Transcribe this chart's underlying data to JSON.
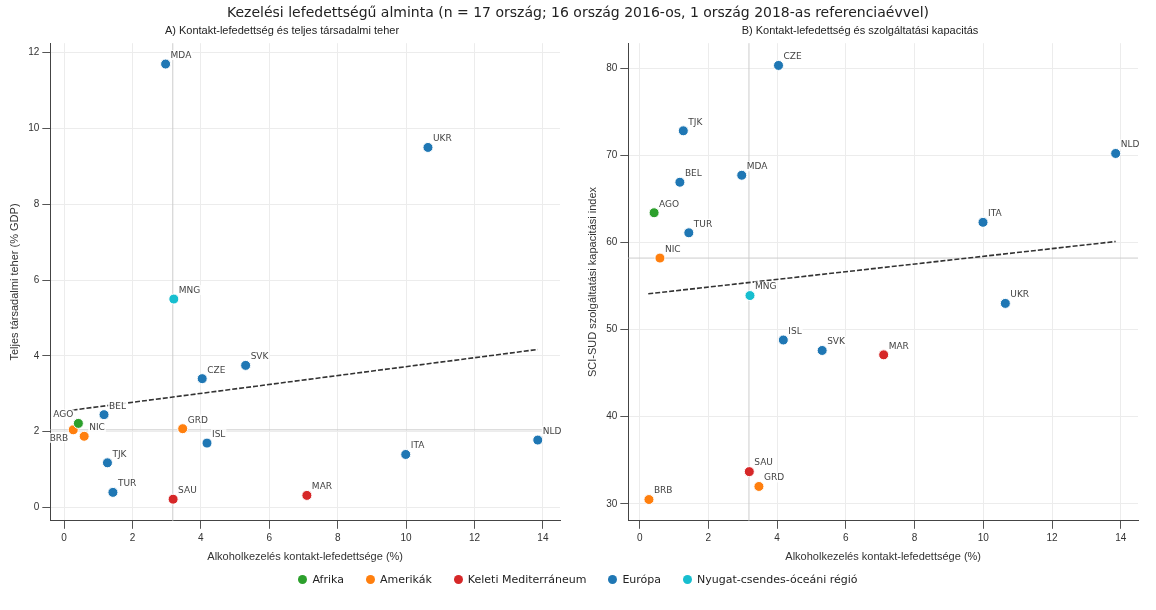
{
  "chart_data": [
    {
      "type": "scatter",
      "title": "Kezelési lefedettségű alminta (n = 17 ország; 16 ország 2016-os, 1 ország 2018-as referenciaévvel)",
      "subtitle": "A) Kontakt-lefedettség és teljes társadalmi teher",
      "xlabel": "Alkoholkezelés kontakt-lefedettsége (%)",
      "ylabel": "Teljes társadalmi teher (% GDP)",
      "xlim": [
        -0.4,
        14.5
      ],
      "ylim": [
        -0.35,
        12.25
      ],
      "xticks": [
        0,
        2,
        4,
        6,
        8,
        10,
        12,
        14
      ],
      "yticks": [
        0,
        2,
        4,
        6,
        8,
        10,
        12
      ],
      "grid": true,
      "legend": "bottom",
      "marker": "circle",
      "series": [
        {
          "name": "Afrika",
          "color": "#2ca02c",
          "x": [
            0.42
          ],
          "values": [
            2.22
          ]
        },
        {
          "name": "Amerikák",
          "color": "#ff7f0e",
          "x": [
            0.27,
            0.59,
            3.47
          ],
          "values": [
            2.05,
            1.88,
            2.08
          ]
        },
        {
          "name": "Keleti Mediterráneum",
          "color": "#d62728",
          "x": [
            3.19,
            7.1
          ],
          "values": [
            0.22,
            0.32
          ]
        },
        {
          "name": "Európa",
          "color": "#1f77b4",
          "x": [
            2.97,
            10.64,
            5.31,
            4.04,
            1.17,
            4.18,
            1.27,
            1.43,
            9.99,
            13.85
          ],
          "values": [
            11.7,
            9.5,
            3.75,
            3.4,
            2.45,
            1.7,
            1.18,
            0.4,
            1.4,
            1.78
          ]
        },
        {
          "name": "Nyugat-csendes-óceáni régió",
          "color": "#17becf",
          "x": [
            3.21
          ],
          "values": [
            5.5
          ]
        },
        {
          "type": "line",
          "color": "#333333",
          "line_style": "dashed",
          "marker": "none",
          "x": [
            0.25,
            13.85
          ],
          "values": [
            2.57,
            4.17
          ]
        }
      ],
      "ref_lines": [
        {
          "axis": "x",
          "value": 3.18,
          "color": "#cccccc"
        },
        {
          "axis": "y",
          "value": 2.05,
          "color": "#cccccc"
        }
      ],
      "annotations": [
        {
          "text": "AGO",
          "x": 0.42,
          "y": 2.22
        },
        {
          "text": "BRB",
          "x": 0.27,
          "y": 2.05
        },
        {
          "text": "NIC",
          "x": 0.59,
          "y": 1.88
        },
        {
          "text": "GRD",
          "x": 3.47,
          "y": 2.08
        },
        {
          "text": "SAU",
          "x": 3.19,
          "y": 0.22
        },
        {
          "text": "MAR",
          "x": 7.1,
          "y": 0.32
        },
        {
          "text": "MDA",
          "x": 2.97,
          "y": 11.7
        },
        {
          "text": "UKR",
          "x": 10.64,
          "y": 9.5
        },
        {
          "text": "SVK",
          "x": 5.31,
          "y": 3.75
        },
        {
          "text": "CZE",
          "x": 4.04,
          "y": 3.4
        },
        {
          "text": "BEL",
          "x": 1.17,
          "y": 2.45
        },
        {
          "text": "ISL",
          "x": 4.18,
          "y": 1.7
        },
        {
          "text": "TJK",
          "x": 1.27,
          "y": 1.18
        },
        {
          "text": "TUR",
          "x": 1.43,
          "y": 0.4
        },
        {
          "text": "ITA",
          "x": 9.99,
          "y": 1.4
        },
        {
          "text": "NLD",
          "x": 13.85,
          "y": 1.78
        },
        {
          "text": "MNG",
          "x": 3.21,
          "y": 5.5
        }
      ]
    },
    {
      "type": "scatter",
      "title": "B) Kontakt-lefedettség és szolgáltatási kapacitás",
      "xlabel": "Alkoholkezelés kontakt-lefedettsége (%)",
      "ylabel": "SCI-SUD szolgáltatási kapacitási index",
      "xlim": [
        -0.33,
        14.5
      ],
      "ylim": [
        28.06,
        82.85
      ],
      "xticks": [
        0,
        2,
        4,
        6,
        8,
        10,
        12,
        14
      ],
      "yticks": [
        30,
        40,
        50,
        60,
        70,
        80
      ],
      "grid": true,
      "marker": "circle",
      "series": [
        {
          "color": "#2ca02c",
          "x": [
            0.42
          ],
          "values": [
            63.4
          ]
        },
        {
          "color": "#ff7f0e",
          "x": [
            0.27,
            0.59,
            3.47
          ],
          "values": [
            30.5,
            58.2,
            32.0
          ]
        },
        {
          "color": "#d62728",
          "x": [
            3.19,
            7.1
          ],
          "values": [
            33.7,
            47.1
          ]
        },
        {
          "color": "#1f77b4",
          "x": [
            2.97,
            10.64,
            5.31,
            4.04,
            1.17,
            4.18,
            1.27,
            1.43,
            9.99,
            13.85
          ],
          "values": [
            67.7,
            53.0,
            47.6,
            80.3,
            66.9,
            48.8,
            72.8,
            61.1,
            62.3,
            70.2
          ]
        },
        {
          "color": "#17becf",
          "x": [
            3.21
          ],
          "values": [
            53.9
          ]
        },
        {
          "type": "line",
          "color": "#333333",
          "line_style": "dashed",
          "marker": "none",
          "x": [
            0.25,
            13.85
          ],
          "values": [
            54.1,
            60.1
          ]
        }
      ],
      "ref_lines": [
        {
          "axis": "x",
          "value": 3.18,
          "color": "#cccccc"
        },
        {
          "axis": "y",
          "value": 58.2,
          "color": "#cccccc"
        }
      ],
      "annotations": [
        {
          "text": "AGO",
          "x": 0.42,
          "y": 63.4
        },
        {
          "text": "BRB",
          "x": 0.27,
          "y": 30.5
        },
        {
          "text": "NIC",
          "x": 0.59,
          "y": 58.2
        },
        {
          "text": "GRD",
          "x": 3.47,
          "y": 32.0
        },
        {
          "text": "SAU",
          "x": 3.19,
          "y": 33.7
        },
        {
          "text": "MAR",
          "x": 7.1,
          "y": 47.1
        },
        {
          "text": "MDA",
          "x": 2.97,
          "y": 67.7
        },
        {
          "text": "UKR",
          "x": 10.64,
          "y": 53.0
        },
        {
          "text": "SVK",
          "x": 5.31,
          "y": 47.6
        },
        {
          "text": "CZE",
          "x": 4.04,
          "y": 80.3
        },
        {
          "text": "BEL",
          "x": 1.17,
          "y": 66.9
        },
        {
          "text": "ISL",
          "x": 4.18,
          "y": 48.8
        },
        {
          "text": "TJK",
          "x": 1.27,
          "y": 72.8
        },
        {
          "text": "TUR",
          "x": 1.43,
          "y": 61.1
        },
        {
          "text": "ITA",
          "x": 9.99,
          "y": 62.3
        },
        {
          "text": "NLD",
          "x": 13.85,
          "y": 70.2
        },
        {
          "text": "MNG",
          "x": 3.21,
          "y": 53.9
        }
      ]
    }
  ]
}
